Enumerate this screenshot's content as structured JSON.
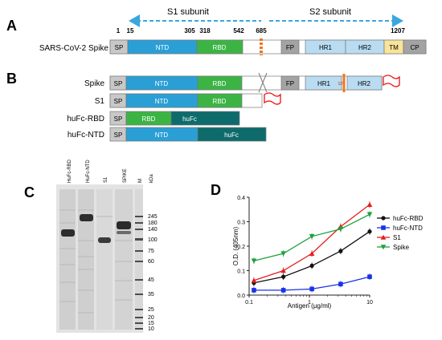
{
  "panels": {
    "a": "A",
    "b": "B",
    "c": "C",
    "d": "D"
  },
  "colors": {
    "sp": "#c8c8c8",
    "ntd": "#2a9fd6",
    "rbd": "#3cb444",
    "fp": "#a3a3a3",
    "hr": "#b9dcf2",
    "tm": "#f8e49a",
    "cp": "#a3a3a3",
    "huFc": "#0e6b6b",
    "cleave": "#ee7722",
    "flag": "#ee1111",
    "arrow": "#3aa7de"
  },
  "panel_a": {
    "s1_label": "S1 subunit",
    "s2_label": "S2 subunit",
    "row_label": "SARS-CoV-2 Spike",
    "positions": {
      "p1": "1",
      "p15": "15",
      "p305": "305",
      "p318": "318",
      "p542": "542",
      "p685": "685",
      "p1207": "1207"
    },
    "domains": {
      "sp": "SP",
      "ntd": "NTD",
      "rbd": "RBD",
      "fp": "FP",
      "hr1": "HR1",
      "hr2": "HR2",
      "tm": "TM",
      "cp": "CP"
    }
  },
  "panel_b": {
    "rows": [
      {
        "label": "Spike"
      },
      {
        "label": "S1"
      },
      {
        "label": "huFc-RBD"
      },
      {
        "label": "huFc-NTD"
      }
    ],
    "domains": {
      "sp": "SP",
      "ntd": "NTD",
      "rbd": "RBD",
      "fp": "FP",
      "hr1": "HR1",
      "hr2": "HR2",
      "s2p": "S2'",
      "huFc": "huFc"
    }
  },
  "panel_c": {
    "lanes": [
      "HuFc-RBD",
      "HuFc-NTD",
      "S1",
      "SPIKE",
      "M"
    ],
    "unit": "kDa",
    "markers": [
      "245",
      "180",
      "140",
      "100",
      "75",
      "60",
      "45",
      "35",
      "25",
      "20",
      "15",
      "10"
    ]
  },
  "chart_data": {
    "type": "line",
    "title": "",
    "xlabel": "Antigen (µg/ml)",
    "ylabel": "O.D. (405nm)",
    "xscale": "log",
    "xlim": [
      0.1,
      10
    ],
    "ylim": [
      0.0,
      0.4
    ],
    "xticks": [
      "0.1",
      "1",
      "10"
    ],
    "yticks": [
      "0.0",
      "0.1",
      "0.2",
      "0.3",
      "0.4"
    ],
    "legend_position": "right",
    "series": [
      {
        "name": "huFc-RBD",
        "color": "#111111",
        "marker": "circle",
        "x": [
          0.12,
          0.37,
          1.1,
          3.3,
          10
        ],
        "y": [
          0.05,
          0.075,
          0.12,
          0.18,
          0.26
        ]
      },
      {
        "name": "huFc-NTD",
        "color": "#1a32e6",
        "marker": "square",
        "x": [
          0.12,
          0.37,
          1.1,
          3.3,
          10
        ],
        "y": [
          0.02,
          0.02,
          0.025,
          0.045,
          0.075
        ]
      },
      {
        "name": "S1",
        "color": "#e61e1e",
        "marker": "triangle-up",
        "x": [
          0.12,
          0.37,
          1.1,
          3.3,
          10
        ],
        "y": [
          0.06,
          0.1,
          0.17,
          0.28,
          0.37
        ]
      },
      {
        "name": "Spike",
        "color": "#1ea03c",
        "marker": "triangle-down",
        "x": [
          0.12,
          0.37,
          1.1,
          3.3,
          10
        ],
        "y": [
          0.14,
          0.17,
          0.24,
          0.27,
          0.33
        ]
      }
    ]
  }
}
